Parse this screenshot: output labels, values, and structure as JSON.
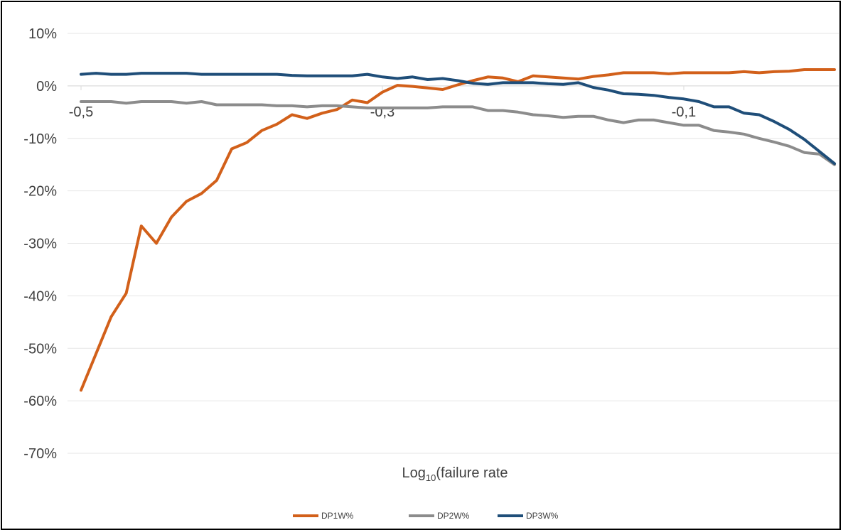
{
  "chart_data": {
    "type": "line",
    "xlabel": "Log10(failure rate",
    "xlabel_main": "Log",
    "xlabel_sub": "10",
    "xlabel_rest": "(failure rate",
    "xlim": [
      -0.5,
      0.0
    ],
    "ylim": [
      -0.7,
      0.1
    ],
    "x_ticks": [
      -0.5,
      -0.3,
      -0.1
    ],
    "x_tick_labels": [
      "-0,5",
      "-0,3",
      "-0,1"
    ],
    "y_ticks": [
      0.1,
      0.0,
      -0.1,
      -0.2,
      -0.3,
      -0.4,
      -0.5,
      -0.6,
      -0.7
    ],
    "y_tick_labels": [
      "10%",
      "0%",
      "-10%",
      "-20%",
      "-30%",
      "-40%",
      "-50%",
      "-60%",
      "-70%"
    ],
    "grid": true,
    "legend_position": "bottom-center",
    "series": [
      {
        "name": "DP1W%",
        "color": "#d2601a",
        "points": [
          [
            -0.5,
            -0.58
          ],
          [
            -0.49,
            -0.51
          ],
          [
            -0.48,
            -0.44
          ],
          [
            -0.47,
            -0.395
          ],
          [
            -0.46,
            -0.267
          ],
          [
            -0.45,
            -0.3
          ],
          [
            -0.44,
            -0.25
          ],
          [
            -0.43,
            -0.22
          ],
          [
            -0.42,
            -0.205
          ],
          [
            -0.41,
            -0.18
          ],
          [
            -0.4,
            -0.12
          ],
          [
            -0.39,
            -0.108
          ],
          [
            -0.38,
            -0.085
          ],
          [
            -0.37,
            -0.073
          ],
          [
            -0.36,
            -0.055
          ],
          [
            -0.35,
            -0.062
          ],
          [
            -0.34,
            -0.052
          ],
          [
            -0.33,
            -0.045
          ],
          [
            -0.32,
            -0.027
          ],
          [
            -0.31,
            -0.032
          ],
          [
            -0.3,
            -0.012
          ],
          [
            -0.29,
            0.001
          ],
          [
            -0.28,
            -0.001
          ],
          [
            -0.27,
            -0.004
          ],
          [
            -0.26,
            -0.007
          ],
          [
            -0.25,
            0.002
          ],
          [
            -0.24,
            0.01
          ],
          [
            -0.23,
            0.017
          ],
          [
            -0.22,
            0.015
          ],
          [
            -0.21,
            0.008
          ],
          [
            -0.2,
            0.019
          ],
          [
            -0.19,
            0.017
          ],
          [
            -0.18,
            0.015
          ],
          [
            -0.17,
            0.013
          ],
          [
            -0.16,
            0.018
          ],
          [
            -0.15,
            0.021
          ],
          [
            -0.14,
            0.025
          ],
          [
            -0.13,
            0.025
          ],
          [
            -0.12,
            0.025
          ],
          [
            -0.11,
            0.023
          ],
          [
            -0.1,
            0.025
          ],
          [
            -0.09,
            0.025
          ],
          [
            -0.08,
            0.025
          ],
          [
            -0.07,
            0.025
          ],
          [
            -0.06,
            0.027
          ],
          [
            -0.05,
            0.025
          ],
          [
            -0.04,
            0.027
          ],
          [
            -0.03,
            0.028
          ],
          [
            -0.02,
            0.031
          ],
          [
            -0.01,
            0.031
          ],
          [
            0.0,
            0.031
          ]
        ]
      },
      {
        "name": "DP2W%",
        "color": "#8c8c8c",
        "points": [
          [
            -0.5,
            -0.03
          ],
          [
            -0.49,
            -0.03
          ],
          [
            -0.48,
            -0.03
          ],
          [
            -0.47,
            -0.033
          ],
          [
            -0.46,
            -0.03
          ],
          [
            -0.45,
            -0.03
          ],
          [
            -0.44,
            -0.03
          ],
          [
            -0.43,
            -0.033
          ],
          [
            -0.42,
            -0.03
          ],
          [
            -0.41,
            -0.036
          ],
          [
            -0.4,
            -0.036
          ],
          [
            -0.39,
            -0.036
          ],
          [
            -0.38,
            -0.036
          ],
          [
            -0.37,
            -0.038
          ],
          [
            -0.36,
            -0.038
          ],
          [
            -0.35,
            -0.04
          ],
          [
            -0.34,
            -0.038
          ],
          [
            -0.33,
            -0.038
          ],
          [
            -0.32,
            -0.04
          ],
          [
            -0.31,
            -0.042
          ],
          [
            -0.3,
            -0.042
          ],
          [
            -0.29,
            -0.042
          ],
          [
            -0.28,
            -0.042
          ],
          [
            -0.27,
            -0.042
          ],
          [
            -0.26,
            -0.04
          ],
          [
            -0.25,
            -0.04
          ],
          [
            -0.24,
            -0.04
          ],
          [
            -0.23,
            -0.047
          ],
          [
            -0.22,
            -0.047
          ],
          [
            -0.21,
            -0.05
          ],
          [
            -0.2,
            -0.055
          ],
          [
            -0.19,
            -0.057
          ],
          [
            -0.18,
            -0.06
          ],
          [
            -0.17,
            -0.058
          ],
          [
            -0.16,
            -0.058
          ],
          [
            -0.15,
            -0.065
          ],
          [
            -0.14,
            -0.07
          ],
          [
            -0.13,
            -0.065
          ],
          [
            -0.12,
            -0.065
          ],
          [
            -0.11,
            -0.07
          ],
          [
            -0.1,
            -0.075
          ],
          [
            -0.09,
            -0.075
          ],
          [
            -0.08,
            -0.085
          ],
          [
            -0.07,
            -0.088
          ],
          [
            -0.06,
            -0.092
          ],
          [
            -0.05,
            -0.1
          ],
          [
            -0.04,
            -0.107
          ],
          [
            -0.03,
            -0.115
          ],
          [
            -0.02,
            -0.127
          ],
          [
            -0.01,
            -0.13
          ],
          [
            0.0,
            -0.15
          ]
        ]
      },
      {
        "name": "DP3W%",
        "color": "#1f4e79",
        "points": [
          [
            -0.5,
            0.022
          ],
          [
            -0.49,
            0.024
          ],
          [
            -0.48,
            0.022
          ],
          [
            -0.47,
            0.022
          ],
          [
            -0.46,
            0.024
          ],
          [
            -0.45,
            0.024
          ],
          [
            -0.44,
            0.024
          ],
          [
            -0.43,
            0.024
          ],
          [
            -0.42,
            0.022
          ],
          [
            -0.41,
            0.022
          ],
          [
            -0.4,
            0.022
          ],
          [
            -0.39,
            0.022
          ],
          [
            -0.38,
            0.022
          ],
          [
            -0.37,
            0.022
          ],
          [
            -0.36,
            0.02
          ],
          [
            -0.35,
            0.019
          ],
          [
            -0.34,
            0.019
          ],
          [
            -0.33,
            0.019
          ],
          [
            -0.32,
            0.019
          ],
          [
            -0.31,
            0.022
          ],
          [
            -0.3,
            0.017
          ],
          [
            -0.29,
            0.014
          ],
          [
            -0.28,
            0.017
          ],
          [
            -0.27,
            0.012
          ],
          [
            -0.26,
            0.014
          ],
          [
            -0.25,
            0.01
          ],
          [
            -0.24,
            0.005
          ],
          [
            -0.23,
            0.003
          ],
          [
            -0.22,
            0.006
          ],
          [
            -0.21,
            0.006
          ],
          [
            -0.2,
            0.006
          ],
          [
            -0.19,
            0.004
          ],
          [
            -0.18,
            0.003
          ],
          [
            -0.17,
            0.006
          ],
          [
            -0.16,
            -0.003
          ],
          [
            -0.15,
            -0.008
          ],
          [
            -0.14,
            -0.015
          ],
          [
            -0.13,
            -0.016
          ],
          [
            -0.12,
            -0.018
          ],
          [
            -0.11,
            -0.022
          ],
          [
            -0.1,
            -0.025
          ],
          [
            -0.09,
            -0.03
          ],
          [
            -0.08,
            -0.04
          ],
          [
            -0.07,
            -0.04
          ],
          [
            -0.06,
            -0.052
          ],
          [
            -0.05,
            -0.055
          ],
          [
            -0.04,
            -0.068
          ],
          [
            -0.03,
            -0.083
          ],
          [
            -0.02,
            -0.102
          ],
          [
            -0.01,
            -0.125
          ],
          [
            0.0,
            -0.148
          ]
        ]
      }
    ]
  }
}
